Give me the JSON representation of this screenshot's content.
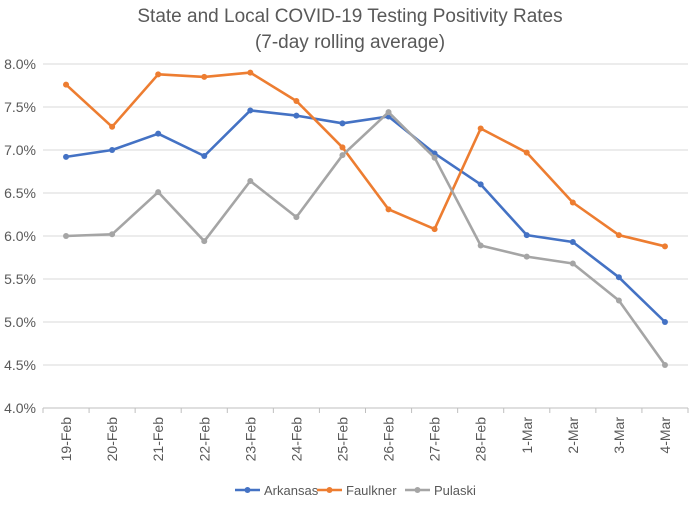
{
  "chart_data": {
    "type": "line",
    "title": "State and Local COVID-19 Testing Positivity Rates",
    "subtitle": "(7-day rolling average)",
    "xlabel": "",
    "ylabel": "",
    "categories": [
      "19-Feb",
      "20-Feb",
      "21-Feb",
      "22-Feb",
      "23-Feb",
      "24-Feb",
      "25-Feb",
      "26-Feb",
      "27-Feb",
      "28-Feb",
      "1-Mar",
      "2-Mar",
      "3-Mar",
      "4-Mar"
    ],
    "ylim": [
      4.0,
      8.0
    ],
    "yticks": [
      "4.0%",
      "4.5%",
      "5.0%",
      "5.5%",
      "6.0%",
      "6.5%",
      "7.0%",
      "7.5%",
      "8.0%"
    ],
    "grid": true,
    "legend_position": "bottom",
    "series": [
      {
        "name": "Arkansas",
        "color": "#4472C4",
        "values": [
          6.92,
          7.0,
          7.19,
          6.93,
          7.46,
          7.4,
          7.31,
          7.39,
          6.96,
          6.6,
          6.01,
          5.93,
          5.52,
          5.0
        ]
      },
      {
        "name": "Faulkner",
        "color": "#ED7D31",
        "values": [
          7.76,
          7.27,
          7.88,
          7.85,
          7.9,
          7.57,
          7.03,
          6.31,
          6.08,
          7.25,
          6.97,
          6.39,
          6.01,
          5.88
        ]
      },
      {
        "name": "Pulaski",
        "color": "#A5A5A5",
        "values": [
          6.0,
          6.02,
          6.51,
          5.94,
          6.64,
          6.22,
          6.94,
          7.44,
          6.91,
          5.89,
          5.76,
          5.68,
          5.25,
          4.5
        ]
      }
    ]
  },
  "colors": {
    "gridline": "#D9D9D9",
    "axis": "#BFBFBF",
    "text": "#595959"
  }
}
